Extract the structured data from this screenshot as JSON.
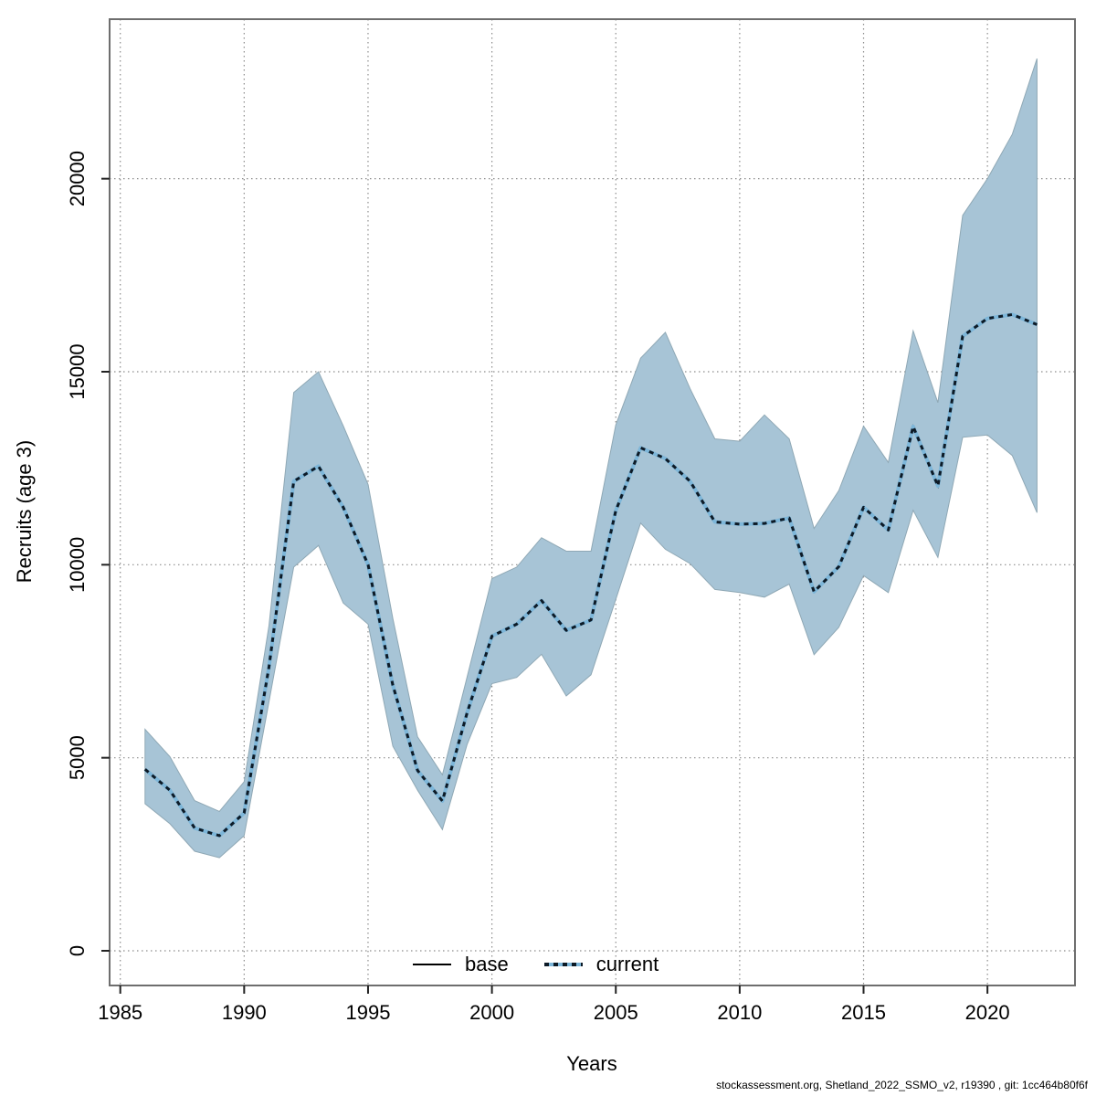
{
  "page": {
    "footer": "stockassessment.org, Shetland_2022_SSMO_v2, r19390 , git: 1cc464b80f6f"
  },
  "chart_data": {
    "type": "area",
    "title": "",
    "xlabel": "Years",
    "ylabel": "Recruits (age 3)",
    "x_ticks": [
      1985,
      1990,
      1995,
      2000,
      2005,
      2010,
      2015,
      2020
    ],
    "y_ticks": [
      0,
      5000,
      10000,
      15000,
      20000
    ],
    "xlim": [
      1983.6,
      2023.6
    ],
    "ylim": [
      -900,
      24150
    ],
    "grid": true,
    "legend_position": "bottom",
    "legend": [
      {
        "label": "base",
        "style": "solid-black-line"
      },
      {
        "label": "current",
        "style": "dotted-blue-line"
      }
    ],
    "series_note": "current shown as dotted line with shaded confidence band; base line coincides with current",
    "years": [
      1986,
      1987,
      1988,
      1989,
      1990,
      1991,
      1992,
      1993,
      1994,
      1995,
      1996,
      1997,
      1998,
      1999,
      2000,
      2001,
      2002,
      2003,
      2004,
      2005,
      2006,
      2007,
      2008,
      2009,
      2010,
      2011,
      2012,
      2013,
      2014,
      2015,
      2016,
      2017,
      2018,
      2019,
      2020,
      2021,
      2022
    ],
    "current_mean": [
      4700,
      4160,
      3180,
      2980,
      3570,
      7350,
      12160,
      12550,
      11490,
      10000,
      6880,
      4670,
      3880,
      6170,
      8150,
      8460,
      9070,
      8300,
      8570,
      11400,
      13030,
      12750,
      12160,
      11110,
      11050,
      11070,
      11210,
      9300,
      9950,
      11490,
      10900,
      13580,
      12040,
      15920,
      16380,
      16480,
      16220
    ],
    "band_low": [
      3810,
      3290,
      2580,
      2410,
      2980,
      6450,
      9940,
      10500,
      9010,
      8460,
      5300,
      4160,
      3140,
      5350,
      6920,
      7080,
      7680,
      6600,
      7150,
      9100,
      11080,
      10400,
      10030,
      9360,
      9280,
      9160,
      9500,
      7670,
      8380,
      9720,
      9280,
      11410,
      10190,
      13300,
      13360,
      12830,
      11350
    ],
    "band_high": [
      5740,
      5030,
      3890,
      3610,
      4380,
      8420,
      14460,
      15000,
      13600,
      12080,
      8610,
      5540,
      4560,
      7100,
      9640,
      9940,
      10700,
      10350,
      10350,
      13620,
      15350,
      16020,
      14560,
      13260,
      13200,
      13880,
      13260,
      10940,
      11920,
      13590,
      12650,
      16060,
      14200,
      19050,
      20000,
      21150,
      23110
    ],
    "colors": {
      "band": "#a7c4d6",
      "band_edge": "#8fa8b5",
      "line_halo": "#7db6d9",
      "line_dash": "#0d1a26",
      "base_line": "#000000",
      "grid": "#8c8c8c",
      "border": "#6e6e6e",
      "tick": "#222222",
      "text": "#000000"
    }
  }
}
